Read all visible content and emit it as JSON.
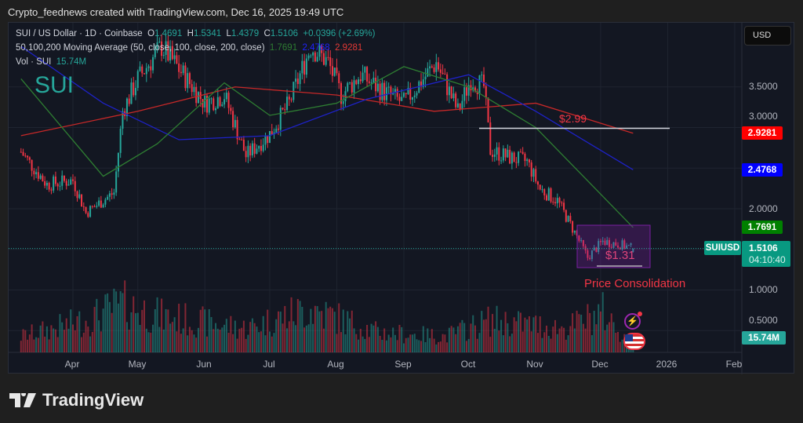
{
  "header": {
    "text": "Crypto_feednews created with TradingView.com, Dec 16, 2025 19:49 UTC"
  },
  "legend": {
    "symbol": "SUI / US Dollar · 1D · Coinbase",
    "o_label": "O",
    "o": "1.4691",
    "h_label": "H",
    "h": "1.5341",
    "l_label": "L",
    "l": "1.4379",
    "c_label": "C",
    "c": "1.5106",
    "change": "+0.0396 (+2.69%)",
    "ma_label": "50,100,200 Moving Average (50, close, 100, close, 200, close)",
    "ma50": "1.7691",
    "ma100": "2.4768",
    "ma200": "2.9281",
    "vol_label": "Vol · SUI",
    "vol": "15.74M"
  },
  "watermark": "SUI",
  "currency_button": "USD",
  "price_axis": [
    "3.5000",
    "3.0000",
    "2.0000",
    "1.0000",
    "0.5000"
  ],
  "time_axis": [
    "Apr",
    "May",
    "Jun",
    "Jul",
    "Aug",
    "Sep",
    "Oct",
    "Nov",
    "Dec",
    "2026",
    "Feb"
  ],
  "tags": {
    "ma200": "2.9281",
    "ma100": "2.4768",
    "ma50": "1.7691",
    "symbol": "SUIUSD",
    "last": "1.5106",
    "countdown": "04:10:40",
    "volume": "15.74M"
  },
  "annotations": {
    "resistance": "$2.99",
    "support": "$1.31",
    "box_label": "Price Consolidation"
  },
  "colors": {
    "up": "#26a69a",
    "down": "#f23645",
    "ma50": "#2e7d32",
    "ma100": "#1e22c8",
    "ma200": "#c62828",
    "box": "#7b1fa2"
  },
  "icons": [
    "lightning-alert-icon",
    "us-flag-events-icon"
  ],
  "logo": "TradingView",
  "chart_data": {
    "type": "candlestick",
    "ylim": [
      0.4,
      4.2
    ],
    "xlim": [
      "2025-03-08",
      "2026-02-20"
    ],
    "close_points": [
      [
        "2025-03-08",
        2.7
      ],
      [
        "2025-03-20",
        2.3
      ],
      [
        "2025-04-01",
        2.35
      ],
      [
        "2025-04-07",
        1.95
      ],
      [
        "2025-04-20",
        2.2
      ],
      [
        "2025-04-24",
        3.2
      ],
      [
        "2025-05-01",
        3.6
      ],
      [
        "2025-05-12",
        4.0
      ],
      [
        "2025-05-22",
        3.65
      ],
      [
        "2025-06-01",
        3.3
      ],
      [
        "2025-06-10",
        3.4
      ],
      [
        "2025-06-20",
        2.65
      ],
      [
        "2025-06-26",
        2.8
      ],
      [
        "2025-07-01",
        2.92
      ],
      [
        "2025-07-10",
        3.3
      ],
      [
        "2025-07-20",
        4.0
      ],
      [
        "2025-07-28",
        3.8
      ],
      [
        "2025-08-03",
        3.4
      ],
      [
        "2025-08-12",
        3.65
      ],
      [
        "2025-08-22",
        3.45
      ],
      [
        "2025-09-01",
        3.3
      ],
      [
        "2025-09-10",
        3.6
      ],
      [
        "2025-09-16",
        3.8
      ],
      [
        "2025-09-26",
        3.2
      ],
      [
        "2025-10-02",
        3.6
      ],
      [
        "2025-10-08",
        3.5
      ],
      [
        "2025-10-11",
        2.72
      ],
      [
        "2025-10-20",
        2.63
      ],
      [
        "2025-10-28",
        2.58
      ],
      [
        "2025-11-03",
        2.24
      ],
      [
        "2025-11-11",
        2.1
      ],
      [
        "2025-11-20",
        1.66
      ],
      [
        "2025-11-25",
        1.4
      ],
      [
        "2025-12-02",
        1.6
      ],
      [
        "2025-12-10",
        1.56
      ],
      [
        "2025-12-16",
        1.51
      ]
    ],
    "ma50": [
      [
        "2025-03-08",
        3.6
      ],
      [
        "2025-04-15",
        2.4
      ],
      [
        "2025-05-10",
        2.8
      ],
      [
        "2025-06-10",
        3.55
      ],
      [
        "2025-07-01",
        3.15
      ],
      [
        "2025-08-01",
        3.3
      ],
      [
        "2025-09-01",
        3.75
      ],
      [
        "2025-10-01",
        3.5
      ],
      [
        "2025-11-01",
        3.0
      ],
      [
        "2025-12-16",
        1.77
      ]
    ],
    "ma100": [
      [
        "2025-03-08",
        4.0
      ],
      [
        "2025-04-15",
        3.3
      ],
      [
        "2025-05-20",
        2.85
      ],
      [
        "2025-07-01",
        2.9
      ],
      [
        "2025-08-15",
        3.35
      ],
      [
        "2025-10-01",
        3.65
      ],
      [
        "2025-11-01",
        3.2
      ],
      [
        "2025-12-16",
        2.48
      ]
    ],
    "ma200": [
      [
        "2025-03-08",
        2.9
      ],
      [
        "2025-05-01",
        3.2
      ],
      [
        "2025-06-15",
        3.5
      ],
      [
        "2025-08-01",
        3.4
      ],
      [
        "2025-09-15",
        3.2
      ],
      [
        "2025-11-01",
        3.3
      ],
      [
        "2025-12-16",
        2.93
      ]
    ],
    "volume_millions": [
      [
        "2025-03-08",
        40
      ],
      [
        "2025-04-07",
        80
      ],
      [
        "2025-04-24",
        120
      ],
      [
        "2025-05-12",
        90
      ],
      [
        "2025-06-20",
        60
      ],
      [
        "2025-07-20",
        110
      ],
      [
        "2025-08-20",
        50
      ],
      [
        "2025-09-20",
        40
      ],
      [
        "2025-10-11",
        80
      ],
      [
        "2025-11-15",
        60
      ],
      [
        "2025-12-02",
        100
      ],
      [
        "2025-12-16",
        15.74
      ]
    ]
  }
}
